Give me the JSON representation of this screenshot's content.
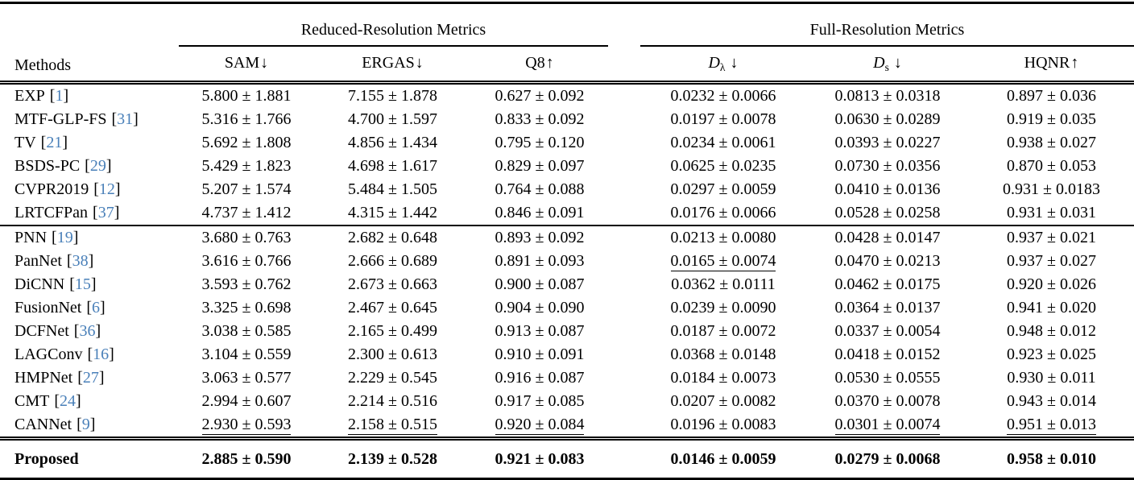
{
  "table": {
    "cite_open": "[",
    "cite_close": "]",
    "colors": {
      "citation": "#4a80b9",
      "rule": "#000000",
      "background": "#ffffff"
    },
    "header": {
      "methods_label": "Methods",
      "groups": [
        {
          "label": "Reduced-Resolution Metrics",
          "columns": [
            {
              "label": "SAM",
              "arrow": "↓"
            },
            {
              "label": "ERGAS",
              "arrow": "↓"
            },
            {
              "label": "Q8",
              "arrow": "↑"
            }
          ]
        },
        {
          "label": "Full-Resolution Metrics",
          "columns": [
            {
              "label": "D",
              "sub": "λ",
              "arrow": "↓"
            },
            {
              "label": "D",
              "sub": "s",
              "arrow": "↓"
            },
            {
              "label": "HQNR",
              "arrow": "↑"
            }
          ]
        }
      ]
    },
    "groups": [
      {
        "rows": [
          {
            "method": "EXP",
            "ref": "1",
            "values": [
              {
                "t": "5.800 ± 1.881",
                "u": false
              },
              {
                "t": "7.155 ± 1.878",
                "u": false
              },
              {
                "t": "0.627 ± 0.092",
                "u": false
              },
              {
                "t": "0.0232 ± 0.0066",
                "u": false
              },
              {
                "t": "0.0813 ± 0.0318",
                "u": false
              },
              {
                "t": "0.897 ± 0.036",
                "u": false
              }
            ]
          },
          {
            "method": "MTF-GLP-FS",
            "ref": "31",
            "values": [
              {
                "t": "5.316 ± 1.766",
                "u": false
              },
              {
                "t": "4.700 ± 1.597",
                "u": false
              },
              {
                "t": "0.833 ± 0.092",
                "u": false
              },
              {
                "t": "0.0197 ± 0.0078",
                "u": false
              },
              {
                "t": "0.0630 ± 0.0289",
                "u": false
              },
              {
                "t": "0.919 ± 0.035",
                "u": false
              }
            ]
          },
          {
            "method": "TV",
            "ref": "21",
            "values": [
              {
                "t": "5.692 ± 1.808",
                "u": false
              },
              {
                "t": "4.856 ± 1.434",
                "u": false
              },
              {
                "t": "0.795 ± 0.120",
                "u": false
              },
              {
                "t": "0.0234 ± 0.0061",
                "u": false
              },
              {
                "t": "0.0393 ± 0.0227",
                "u": false
              },
              {
                "t": "0.938 ± 0.027",
                "u": false
              }
            ]
          },
          {
            "method": "BSDS-PC",
            "ref": "29",
            "values": [
              {
                "t": "5.429 ± 1.823",
                "u": false
              },
              {
                "t": "4.698 ± 1.617",
                "u": false
              },
              {
                "t": "0.829 ± 0.097",
                "u": false
              },
              {
                "t": "0.0625 ± 0.0235",
                "u": false
              },
              {
                "t": "0.0730 ± 0.0356",
                "u": false
              },
              {
                "t": "0.870 ± 0.053",
                "u": false
              }
            ]
          },
          {
            "method": "CVPR2019",
            "ref": "12",
            "values": [
              {
                "t": "5.207 ± 1.574",
                "u": false
              },
              {
                "t": "5.484 ± 1.505",
                "u": false
              },
              {
                "t": "0.764 ± 0.088",
                "u": false
              },
              {
                "t": "0.0297 ± 0.0059",
                "u": false
              },
              {
                "t": "0.0410 ± 0.0136",
                "u": false
              },
              {
                "t": "0.931 ± 0.0183",
                "u": false
              }
            ]
          },
          {
            "method": "LRTCFPan",
            "ref": "37",
            "values": [
              {
                "t": "4.737 ± 1.412",
                "u": false
              },
              {
                "t": "4.315 ± 1.442",
                "u": false
              },
              {
                "t": "0.846 ± 0.091",
                "u": false
              },
              {
                "t": "0.0176 ± 0.0066",
                "u": false
              },
              {
                "t": "0.0528 ± 0.0258",
                "u": false
              },
              {
                "t": "0.931 ± 0.031",
                "u": false
              }
            ]
          }
        ]
      },
      {
        "rows": [
          {
            "method": "PNN",
            "ref": "19",
            "values": [
              {
                "t": "3.680 ± 0.763",
                "u": false
              },
              {
                "t": "2.682 ± 0.648",
                "u": false
              },
              {
                "t": "0.893 ± 0.092",
                "u": false
              },
              {
                "t": "0.0213 ± 0.0080",
                "u": false
              },
              {
                "t": "0.0428 ± 0.0147",
                "u": false
              },
              {
                "t": "0.937 ± 0.021",
                "u": false
              }
            ]
          },
          {
            "method": "PanNet",
            "ref": "38",
            "values": [
              {
                "t": "3.616 ± 0.766",
                "u": false
              },
              {
                "t": "2.666 ± 0.689",
                "u": false
              },
              {
                "t": "0.891 ± 0.093",
                "u": false
              },
              {
                "t": "0.0165 ± 0.0074",
                "u": true
              },
              {
                "t": "0.0470 ± 0.0213",
                "u": false
              },
              {
                "t": "0.937 ± 0.027",
                "u": false
              }
            ]
          },
          {
            "method": "DiCNN",
            "ref": "15",
            "values": [
              {
                "t": "3.593 ± 0.762",
                "u": false
              },
              {
                "t": "2.673 ± 0.663",
                "u": false
              },
              {
                "t": "0.900 ± 0.087",
                "u": false
              },
              {
                "t": "0.0362 ± 0.0111",
                "u": false
              },
              {
                "t": "0.0462 ± 0.0175",
                "u": false
              },
              {
                "t": "0.920 ± 0.026",
                "u": false
              }
            ]
          },
          {
            "method": "FusionNet",
            "ref": "6",
            "values": [
              {
                "t": "3.325 ± 0.698",
                "u": false
              },
              {
                "t": "2.467 ± 0.645",
                "u": false
              },
              {
                "t": "0.904 ± 0.090",
                "u": false
              },
              {
                "t": "0.0239 ± 0.0090",
                "u": false
              },
              {
                "t": "0.0364 ± 0.0137",
                "u": false
              },
              {
                "t": "0.941 ± 0.020",
                "u": false
              }
            ]
          },
          {
            "method": "DCFNet",
            "ref": "36",
            "values": [
              {
                "t": "3.038 ± 0.585",
                "u": false
              },
              {
                "t": "2.165 ± 0.499",
                "u": false
              },
              {
                "t": "0.913 ± 0.087",
                "u": false
              },
              {
                "t": "0.0187 ± 0.0072",
                "u": false
              },
              {
                "t": "0.0337 ± 0.0054",
                "u": false
              },
              {
                "t": "0.948 ± 0.012",
                "u": false
              }
            ]
          },
          {
            "method": "LAGConv",
            "ref": "16",
            "values": [
              {
                "t": "3.104 ± 0.559",
                "u": false
              },
              {
                "t": "2.300 ± 0.613",
                "u": false
              },
              {
                "t": "0.910 ± 0.091",
                "u": false
              },
              {
                "t": "0.0368 ± 0.0148",
                "u": false
              },
              {
                "t": "0.0418 ± 0.0152",
                "u": false
              },
              {
                "t": "0.923 ± 0.025",
                "u": false
              }
            ]
          },
          {
            "method": "HMPNet",
            "ref": "27",
            "values": [
              {
                "t": "3.063 ± 0.577",
                "u": false
              },
              {
                "t": "2.229 ± 0.545",
                "u": false
              },
              {
                "t": "0.916 ± 0.087",
                "u": false
              },
              {
                "t": "0.0184 ± 0.0073",
                "u": false
              },
              {
                "t": "0.0530 ± 0.0555",
                "u": false
              },
              {
                "t": "0.930 ± 0.011",
                "u": false
              }
            ]
          },
          {
            "method": "CMT",
            "ref": "24",
            "values": [
              {
                "t": "2.994 ± 0.607",
                "u": false
              },
              {
                "t": "2.214 ± 0.516",
                "u": false
              },
              {
                "t": "0.917 ± 0.085",
                "u": false
              },
              {
                "t": "0.0207 ± 0.0082",
                "u": false
              },
              {
                "t": "0.0370 ± 0.0078",
                "u": false
              },
              {
                "t": "0.943 ± 0.014",
                "u": false
              }
            ]
          },
          {
            "method": "CANNet",
            "ref": "9",
            "values": [
              {
                "t": "2.930 ± 0.593",
                "u": true
              },
              {
                "t": "2.158 ± 0.515",
                "u": true
              },
              {
                "t": "0.920 ± 0.084",
                "u": true
              },
              {
                "t": "0.0196 ± 0.0083",
                "u": false
              },
              {
                "t": "0.0301 ± 0.0074",
                "u": true
              },
              {
                "t": "0.951 ± 0.013",
                "u": true
              }
            ]
          }
        ]
      }
    ],
    "proposed": {
      "method": "Proposed",
      "values": [
        {
          "t": "2.885 ± 0.590",
          "u": false
        },
        {
          "t": "2.139 ± 0.528",
          "u": false
        },
        {
          "t": "0.921 ± 0.083",
          "u": false
        },
        {
          "t": "0.0146 ± 0.0059",
          "u": false
        },
        {
          "t": "0.0279 ± 0.0068",
          "u": false
        },
        {
          "t": "0.958 ± 0.010",
          "u": false
        }
      ]
    }
  }
}
